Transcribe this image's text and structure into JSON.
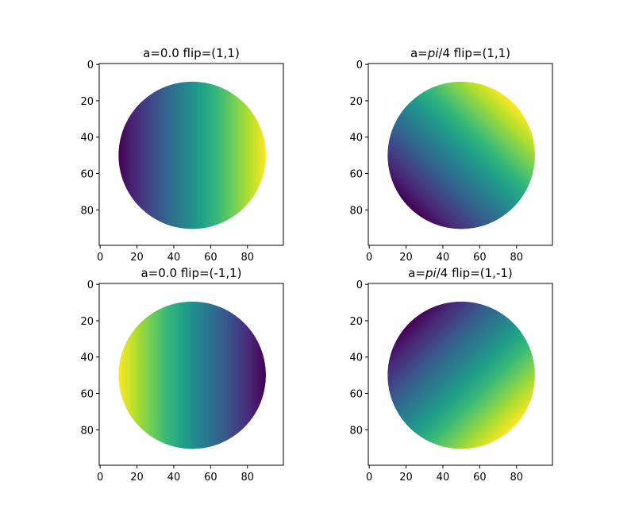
{
  "chart_data": [
    {
      "type": "heatmap",
      "title_main": "a=0.0 flip=(1,1)",
      "title_italic": "",
      "title_rest": "",
      "angle": 0.0,
      "flip": [
        1,
        1
      ],
      "colormap": "viridis",
      "image_size": [
        100,
        100
      ],
      "mask": "circle",
      "circle_center": [
        50,
        50
      ],
      "circle_radius": 40,
      "xlim": [
        0,
        99
      ],
      "ylim": [
        99,
        0
      ],
      "xticks": [
        "0",
        "20",
        "40",
        "60",
        "80"
      ],
      "yticks": [
        "0",
        "20",
        "40",
        "60",
        "80"
      ],
      "gradient": "dark left, bright right"
    },
    {
      "type": "heatmap",
      "title_main": "a=",
      "title_italic": "pi",
      "title_rest": "/4 flip=(1,1)",
      "angle": 0.7853981634,
      "flip": [
        1,
        1
      ],
      "colormap": "viridis",
      "image_size": [
        100,
        100
      ],
      "mask": "circle",
      "circle_center": [
        50,
        50
      ],
      "circle_radius": 40,
      "xlim": [
        0,
        99
      ],
      "ylim": [
        99,
        0
      ],
      "xticks": [
        "0",
        "20",
        "40",
        "60",
        "80"
      ],
      "yticks": [
        "0",
        "20",
        "40",
        "60",
        "80"
      ],
      "gradient": "dark bottom-left, bright top-right"
    },
    {
      "type": "heatmap",
      "title_main": "a=0.0 flip=(-1,1)",
      "title_italic": "",
      "title_rest": "",
      "angle": 0.0,
      "flip": [
        -1,
        1
      ],
      "colormap": "viridis",
      "image_size": [
        100,
        100
      ],
      "mask": "circle",
      "circle_center": [
        50,
        50
      ],
      "circle_radius": 40,
      "xlim": [
        0,
        99
      ],
      "ylim": [
        99,
        0
      ],
      "xticks": [
        "0",
        "20",
        "40",
        "60",
        "80"
      ],
      "yticks": [
        "0",
        "20",
        "40",
        "60",
        "80"
      ],
      "gradient": "bright left, dark right"
    },
    {
      "type": "heatmap",
      "title_main": "a=",
      "title_italic": "pi",
      "title_rest": "/4 flip=(1,-1)",
      "angle": 0.7853981634,
      "flip": [
        1,
        -1
      ],
      "colormap": "viridis",
      "image_size": [
        100,
        100
      ],
      "mask": "circle",
      "circle_center": [
        50,
        50
      ],
      "circle_radius": 40,
      "xlim": [
        0,
        99
      ],
      "ylim": [
        99,
        0
      ],
      "xticks": [
        "0",
        "20",
        "40",
        "60",
        "80"
      ],
      "yticks": [
        "0",
        "20",
        "40",
        "60",
        "80"
      ],
      "gradient": "dark top-left, bright bottom-right"
    }
  ]
}
